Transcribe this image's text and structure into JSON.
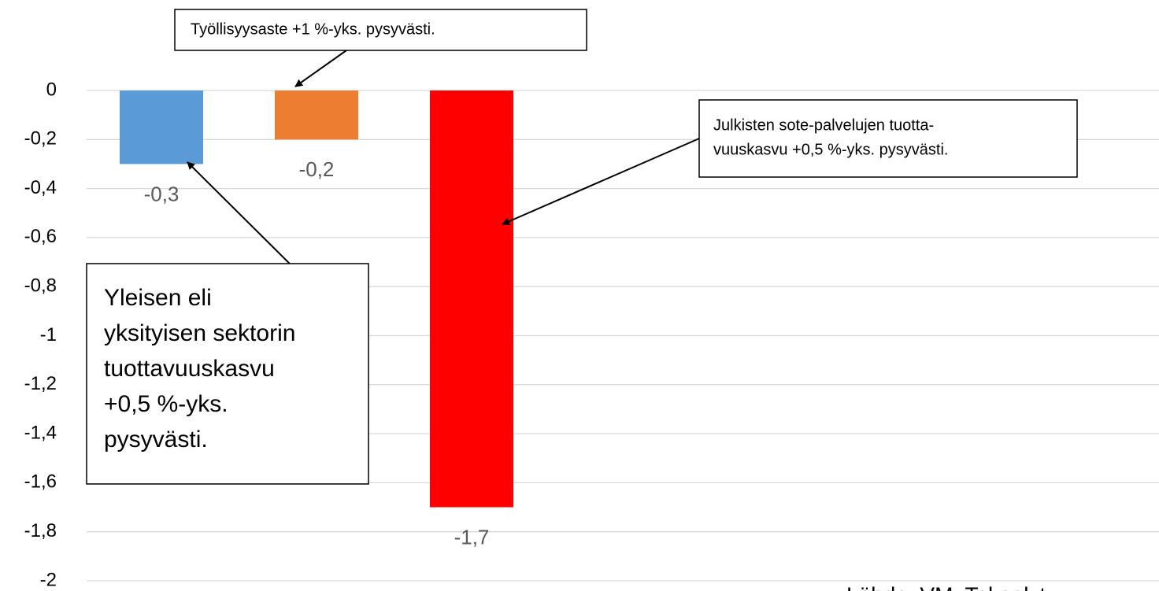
{
  "chart_data": {
    "type": "bar",
    "categories": [
      null,
      null,
      null
    ],
    "values": [
      -0.3,
      -0.2,
      -1.7
    ],
    "value_labels": [
      "-0,3",
      "-0,2",
      "-1,7"
    ],
    "colors": [
      "#5b9bd5",
      "#ed7d31",
      "#ff0000"
    ],
    "ylim": [
      -2,
      0
    ],
    "yticks": [
      {
        "value": 0,
        "label": "0"
      },
      {
        "value": -0.2,
        "label": "-0,2"
      },
      {
        "value": -0.4,
        "label": "-0,4"
      },
      {
        "value": -0.6,
        "label": "-0,6"
      },
      {
        "value": -0.8,
        "label": "-0,8"
      },
      {
        "value": -1,
        "label": "-1"
      },
      {
        "value": -1.2,
        "label": "-1,2"
      },
      {
        "value": -1.4,
        "label": "-1,4"
      },
      {
        "value": -1.6,
        "label": "-1,6"
      },
      {
        "value": -1.8,
        "label": "-1,8"
      },
      {
        "value": -2,
        "label": "-2"
      }
    ],
    "grid": true,
    "annotations": [
      {
        "lines": [
          "Työllisyysaste +1 %-yks. pysyvästi."
        ]
      },
      {
        "lines": [
          "Julkisten sote-palvelujen tuotta-",
          "vuuskasvu +0,5 %-yks. pysyvästi."
        ]
      },
      {
        "lines": [
          "Yleisen eli",
          "yksityisen sektorin",
          "tuottavuuskasvu",
          "+0,5 %-yks.",
          "pysyvästi."
        ]
      }
    ],
    "source": "Lähde: VM, Tekoalyt"
  }
}
